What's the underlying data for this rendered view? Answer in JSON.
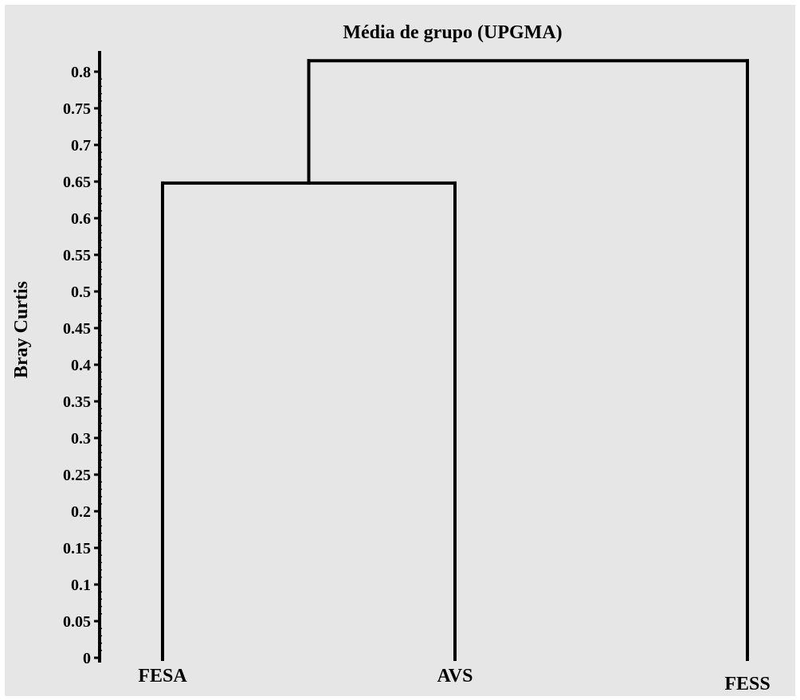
{
  "chart_data": {
    "type": "dendrogram",
    "title": "Média de grupo (UPGMA)",
    "xlabel": "",
    "ylabel": "Bray Curtis",
    "ylim": [
      0,
      0.815
    ],
    "y_ticks": [
      "0",
      "0.05",
      "0.1",
      "0.15",
      "0.2",
      "0.25",
      "0.3",
      "0.35",
      "0.4",
      "0.45",
      "0.5",
      "0.55",
      "0.6",
      "0.65",
      "0.7",
      "0.75",
      "0.8"
    ],
    "leaves": [
      "FESA",
      "AVS",
      "FESS"
    ],
    "merges": [
      {
        "left": "FESA",
        "right": "AVS",
        "height": 0.648
      },
      {
        "left": "FESA+AVS",
        "right": "FESS",
        "height": 0.815
      }
    ]
  },
  "colors": {
    "background": "#e6e6e6",
    "line": "#000000"
  }
}
